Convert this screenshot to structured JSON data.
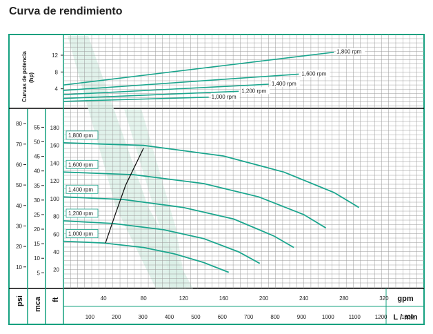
{
  "title": "Curva de rendimiento",
  "colors": {
    "frame": "#13a07f",
    "curve": "#1aa58d",
    "grid": "#9a9a9a",
    "band": "#d9efe6",
    "efficiency": "#111111"
  },
  "chart_data": [
    {
      "type": "line",
      "name": "power",
      "ylabel": "Curvas de potencia (hp)",
      "yticks": [
        4,
        8,
        12
      ],
      "ylim": [
        0,
        14
      ],
      "xlim": [
        0,
        360
      ],
      "series": [
        {
          "name": "1,000 rpm",
          "label": "1,000 rpm",
          "x": [
            0,
            145
          ],
          "y": [
            1.0,
            2.0
          ]
        },
        {
          "name": "1,200 rpm",
          "label": "1,200 rpm",
          "x": [
            0,
            175
          ],
          "y": [
            1.7,
            3.4
          ]
        },
        {
          "name": "1,400 rpm",
          "label": "1,400 rpm",
          "x": [
            0,
            205
          ],
          "y": [
            2.6,
            5.1
          ]
        },
        {
          "name": "1,600 rpm",
          "label": "1,600 rpm",
          "x": [
            0,
            235
          ],
          "y": [
            3.6,
            7.5
          ]
        },
        {
          "name": "1,800 rpm",
          "label": "1,800 rpm",
          "x": [
            0,
            270
          ],
          "y": [
            4.9,
            12.7
          ]
        }
      ]
    },
    {
      "type": "line",
      "name": "head",
      "xlabel": "gpm",
      "xlabel2": "L / min",
      "xticks_gpm": [
        40,
        80,
        120,
        160,
        200,
        240,
        280,
        320
      ],
      "xticks_lmin": [
        100,
        200,
        300,
        400,
        500,
        600,
        700,
        800,
        900,
        1000,
        1100,
        1200,
        1300
      ],
      "xlim": [
        0,
        360
      ],
      "y_ft": {
        "label": "ft",
        "ticks": [
          20,
          40,
          60,
          80,
          100,
          120,
          140,
          160,
          180
        ],
        "lim": [
          0,
          190
        ]
      },
      "y_mca": {
        "label": "mca",
        "ticks": [
          5,
          10,
          15,
          20,
          25,
          30,
          35,
          40,
          45,
          50,
          55
        ]
      },
      "y_psi": {
        "label": "psi",
        "ticks": [
          10,
          20,
          30,
          40,
          50,
          60,
          70,
          80
        ]
      },
      "series": [
        {
          "name": "1,000 rpm",
          "label": "1,000 rpm",
          "x": [
            0,
            40,
            80,
            110,
            140,
            165
          ],
          "y": [
            52,
            50,
            45,
            38,
            28,
            17
          ]
        },
        {
          "name": "1,200 rpm",
          "label": "1,200 rpm",
          "x": [
            0,
            50,
            100,
            140,
            175,
            196
          ],
          "y": [
            75,
            72,
            65,
            55,
            40,
            27
          ]
        },
        {
          "name": "1,400 rpm",
          "label": "1,400 rpm",
          "x": [
            0,
            60,
            120,
            170,
            210,
            230
          ],
          "y": [
            102,
            99,
            90,
            77,
            58,
            45
          ]
        },
        {
          "name": "1,600 rpm",
          "label": "1,600 rpm",
          "x": [
            0,
            70,
            140,
            195,
            240,
            262
          ],
          "y": [
            130,
            127,
            117,
            102,
            82,
            67
          ]
        },
        {
          "name": "1,800 rpm",
          "label": "1,800 rpm",
          "x": [
            0,
            80,
            160,
            220,
            270,
            295
          ],
          "y": [
            163,
            160,
            148,
            130,
            107,
            90
          ]
        }
      ],
      "efficiency_line": {
        "x": [
          42,
          52,
          62,
          80
        ],
        "y": [
          50,
          83,
          115,
          157
        ]
      }
    }
  ]
}
